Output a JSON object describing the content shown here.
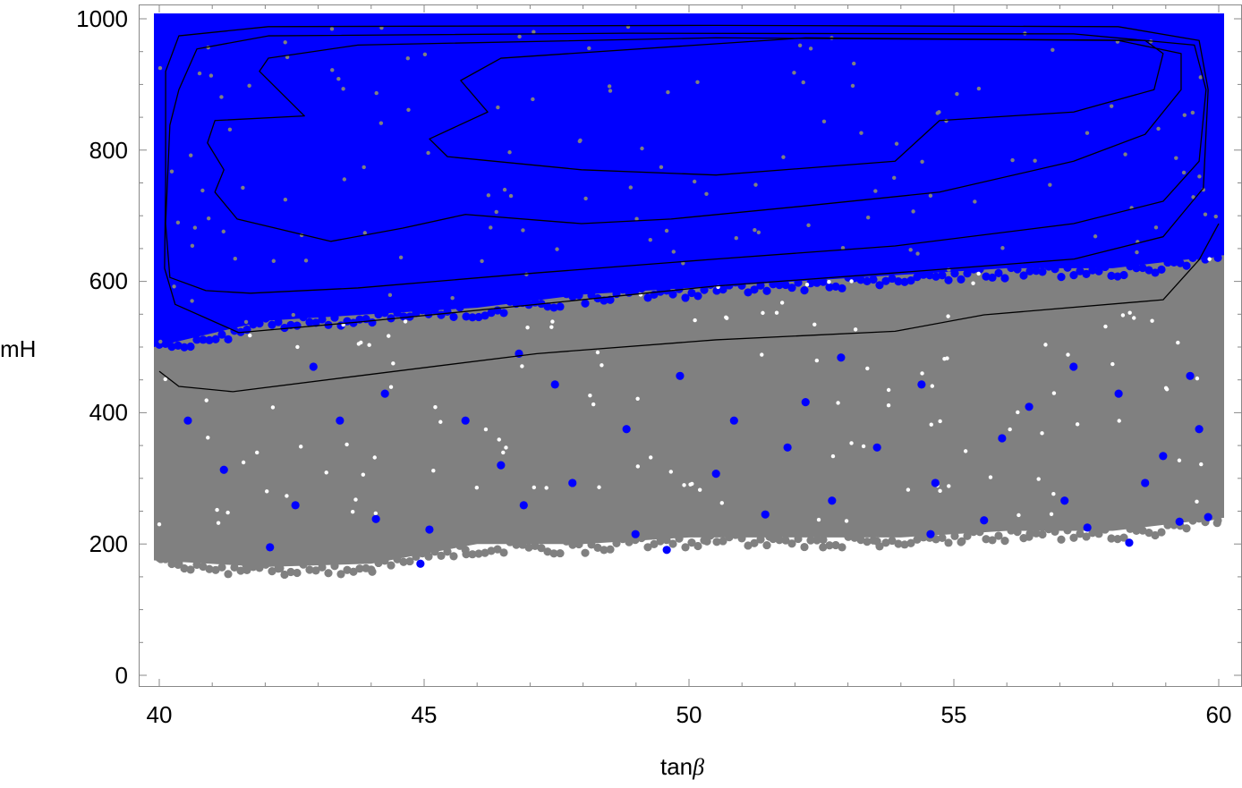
{
  "chart_data": {
    "type": "scatter",
    "xlabel": "tanβ",
    "xlabel_main": "tan",
    "xlabel_symbol": "β",
    "ylabel": "mH",
    "xlim": [
      40,
      60
    ],
    "ylim": [
      0,
      1000
    ],
    "x_ticks": [
      "40",
      "45",
      "50",
      "55",
      "60"
    ],
    "y_ticks": [
      "0",
      "200",
      "400",
      "600",
      "800",
      "1000"
    ],
    "grid": false,
    "legend": "none",
    "colors": {
      "all_points": "#808080",
      "selected_points": "#0000ff",
      "contours": "#000000"
    },
    "dense_regions": [
      {
        "series": "gray",
        "x": [
          40,
          42,
          44,
          46,
          48,
          50,
          52,
          54,
          56,
          58,
          60
        ],
        "y_low": [
          175,
          165,
          170,
          200,
          200,
          210,
          210,
          210,
          220,
          220,
          240
        ],
        "y_high": 1000
      },
      {
        "series": "blue",
        "x": [
          40,
          42,
          44,
          46,
          48,
          50,
          52,
          54,
          56,
          58,
          60
        ],
        "y_low": [
          500,
          540,
          550,
          560,
          580,
          590,
          600,
          610,
          620,
          620,
          640
        ],
        "y_high": 1000
      }
    ],
    "series": [
      {
        "color": "#808080",
        "points": [
          [
            44.0,
            161
          ],
          [
            42.28,
            163
          ],
          [
            41.64,
            168
          ],
          [
            40.03,
            177
          ],
          [
            40.37,
            170
          ],
          [
            50.34,
            204
          ],
          [
            51.52,
            211
          ],
          [
            53.55,
            204
          ],
          [
            56.42,
            211
          ],
          [
            58.45,
            225
          ],
          [
            59.97,
            232
          ],
          [
            52.53,
            195
          ],
          [
            47.8,
            211
          ],
          [
            45.78,
            191
          ],
          [
            55.15,
            204
          ]
        ]
      },
      {
        "color": "#0000ff",
        "points": [
          [
            44.93,
            170
          ],
          [
            49.58,
            191
          ],
          [
            58.31,
            202
          ],
          [
            42.09,
            195
          ],
          [
            45.1,
            222
          ],
          [
            48.99,
            215
          ],
          [
            54.56,
            215
          ],
          [
            57.52,
            225
          ],
          [
            59.8,
            241
          ],
          [
            51.44,
            245
          ],
          [
            46.88,
            259
          ],
          [
            55.57,
            236
          ],
          [
            59.26,
            234
          ],
          [
            44.09,
            238
          ],
          [
            42.57,
            259
          ],
          [
            52.7,
            266
          ],
          [
            57.09,
            266
          ],
          [
            58.61,
            293
          ],
          [
            54.65,
            293
          ],
          [
            50.51,
            307
          ],
          [
            47.8,
            293
          ],
          [
            46.45,
            320
          ],
          [
            41.22,
            313
          ],
          [
            53.55,
            347
          ],
          [
            55.91,
            361
          ],
          [
            58.95,
            334
          ],
          [
            48.82,
            375
          ],
          [
            43.41,
            388
          ],
          [
            52.2,
            416
          ],
          [
            58.11,
            429
          ],
          [
            47.47,
            443
          ],
          [
            44.26,
            429
          ],
          [
            54.39,
            443
          ],
          [
            40.54,
            388
          ],
          [
            59.63,
            375
          ],
          [
            50.85,
            388
          ],
          [
            56.42,
            409
          ],
          [
            45.78,
            388
          ],
          [
            49.83,
            456
          ],
          [
            42.91,
            470
          ],
          [
            52.87,
            484
          ],
          [
            57.26,
            470
          ],
          [
            46.79,
            490
          ],
          [
            59.46,
            456
          ],
          [
            51.86,
            347
          ]
        ]
      }
    ],
    "contours": [
      {
        "closed": false,
        "points": [
          [
            40,
            463
          ],
          [
            40.37,
            440
          ],
          [
            41.39,
            432
          ],
          [
            43.75,
            456
          ],
          [
            47.13,
            490
          ],
          [
            50.51,
            511
          ],
          [
            53.89,
            524
          ],
          [
            55.57,
            549
          ],
          [
            58.95,
            572
          ],
          [
            59.63,
            633
          ],
          [
            60,
            688
          ]
        ]
      },
      {
        "closed": true,
        "points": [
          [
            40.1,
            620
          ],
          [
            40.3,
            565
          ],
          [
            41.5,
            522
          ],
          [
            43.75,
            538
          ],
          [
            47.13,
            565
          ],
          [
            50.51,
            593
          ],
          [
            53.89,
            613
          ],
          [
            57.27,
            634
          ],
          [
            58.95,
            668
          ],
          [
            59.71,
            742
          ],
          [
            59.8,
            892
          ],
          [
            59.63,
            967
          ],
          [
            58.1,
            988
          ],
          [
            50.5,
            990
          ],
          [
            42.06,
            988
          ],
          [
            40.37,
            974
          ],
          [
            40.12,
            920
          ],
          [
            40.12,
            756
          ]
        ]
      },
      {
        "closed": true,
        "points": [
          [
            40.2,
            606
          ],
          [
            40.88,
            586
          ],
          [
            41.72,
            582
          ],
          [
            43.75,
            590
          ],
          [
            47.13,
            613
          ],
          [
            50.51,
            634
          ],
          [
            53.89,
            654
          ],
          [
            57.26,
            688
          ],
          [
            58.95,
            722
          ],
          [
            59.63,
            783
          ],
          [
            59.76,
            892
          ],
          [
            59.54,
            960
          ],
          [
            57.26,
            977
          ],
          [
            48.82,
            978
          ],
          [
            42.06,
            974
          ],
          [
            40.71,
            954
          ],
          [
            40.37,
            892
          ],
          [
            40.2,
            838
          ],
          [
            40.12,
            688
          ]
        ]
      },
      {
        "closed": true,
        "points": [
          [
            41.89,
            920
          ],
          [
            42.74,
            852
          ],
          [
            41.05,
            845
          ],
          [
            40.91,
            811
          ],
          [
            41.22,
            770
          ],
          [
            41.05,
            736
          ],
          [
            41.47,
            695
          ],
          [
            43.24,
            661
          ],
          [
            44.59,
            681
          ],
          [
            45.78,
            702
          ],
          [
            47.97,
            688
          ],
          [
            49.66,
            695
          ],
          [
            52.2,
            715
          ],
          [
            54.73,
            736
          ],
          [
            57.26,
            783
          ],
          [
            58.61,
            824
          ],
          [
            59.29,
            892
          ],
          [
            59.29,
            947
          ],
          [
            58.11,
            967
          ],
          [
            50.51,
            971
          ],
          [
            43.75,
            960
          ],
          [
            42.06,
            940
          ]
        ]
      },
      {
        "closed": true,
        "points": [
          [
            45.69,
            906
          ],
          [
            46.2,
            858
          ],
          [
            45.1,
            817
          ],
          [
            45.44,
            790
          ],
          [
            47.97,
            770
          ],
          [
            50.51,
            762
          ],
          [
            53.89,
            783
          ],
          [
            54.73,
            845
          ],
          [
            57.26,
            858
          ],
          [
            58.78,
            892
          ],
          [
            58.95,
            947
          ],
          [
            58.61,
            967
          ],
          [
            52.2,
            971
          ],
          [
            46.45,
            940
          ]
        ]
      }
    ]
  }
}
